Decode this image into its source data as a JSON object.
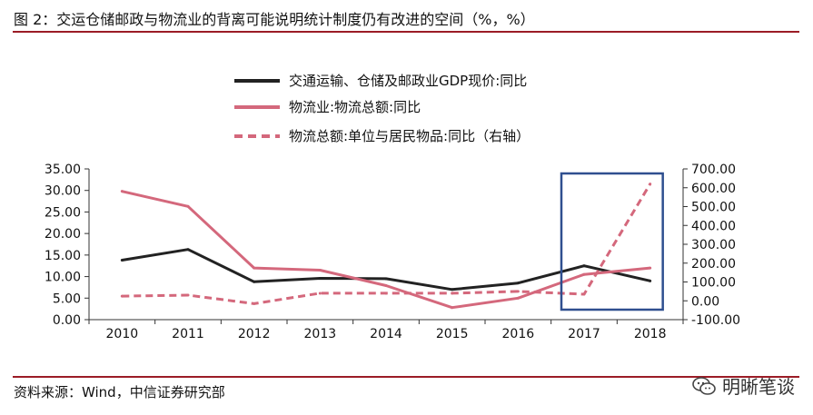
{
  "figure": {
    "title": "图 2：交运仓储邮政与物流业的背离可能说明统计制度仍有改进的空间（%，%）",
    "source": "资料来源：Wind，中信证券研究部",
    "watermark": "明晰笔谈",
    "watermark_icon": "wechat-icon"
  },
  "chart_data": {
    "type": "line",
    "x": [
      "2010",
      "2011",
      "2012",
      "2013",
      "2014",
      "2015",
      "2016",
      "2017",
      "2018"
    ],
    "series": [
      {
        "name": "交通运输、仓储及邮政业GDP现价:同比",
        "axis": "left",
        "style": "solid",
        "color": "#222222",
        "values": [
          13.8,
          16.3,
          8.8,
          9.6,
          9.5,
          7.0,
          8.5,
          12.5,
          9.0
        ]
      },
      {
        "name": "物流业:物流总额:同比",
        "axis": "left",
        "style": "solid",
        "color": "#d4687c",
        "values": [
          29.8,
          26.3,
          12.0,
          11.5,
          7.9,
          2.8,
          5.0,
          10.5,
          12.0
        ]
      },
      {
        "name": "物流总额:单位与居民物品:同比（右轴）",
        "axis": "right",
        "style": "dashed",
        "color": "#d4687c",
        "values": [
          25,
          30,
          -15,
          40,
          40,
          40,
          50,
          35,
          620
        ]
      }
    ],
    "y_left": {
      "min": 0,
      "max": 35,
      "step": 5,
      "ticks": [
        "0.00",
        "5.00",
        "10.00",
        "15.00",
        "20.00",
        "25.00",
        "30.00",
        "35.00"
      ]
    },
    "y_right": {
      "min": -100,
      "max": 700,
      "step": 100,
      "ticks": [
        "-100.00",
        "0.00",
        "100.00",
        "200.00",
        "300.00",
        "400.00",
        "500.00",
        "600.00",
        "700.00"
      ]
    },
    "legend_position": "top-center",
    "grid": false,
    "highlight_box": {
      "from": "2017",
      "to": "2018",
      "color": "#2f4f8f"
    }
  }
}
